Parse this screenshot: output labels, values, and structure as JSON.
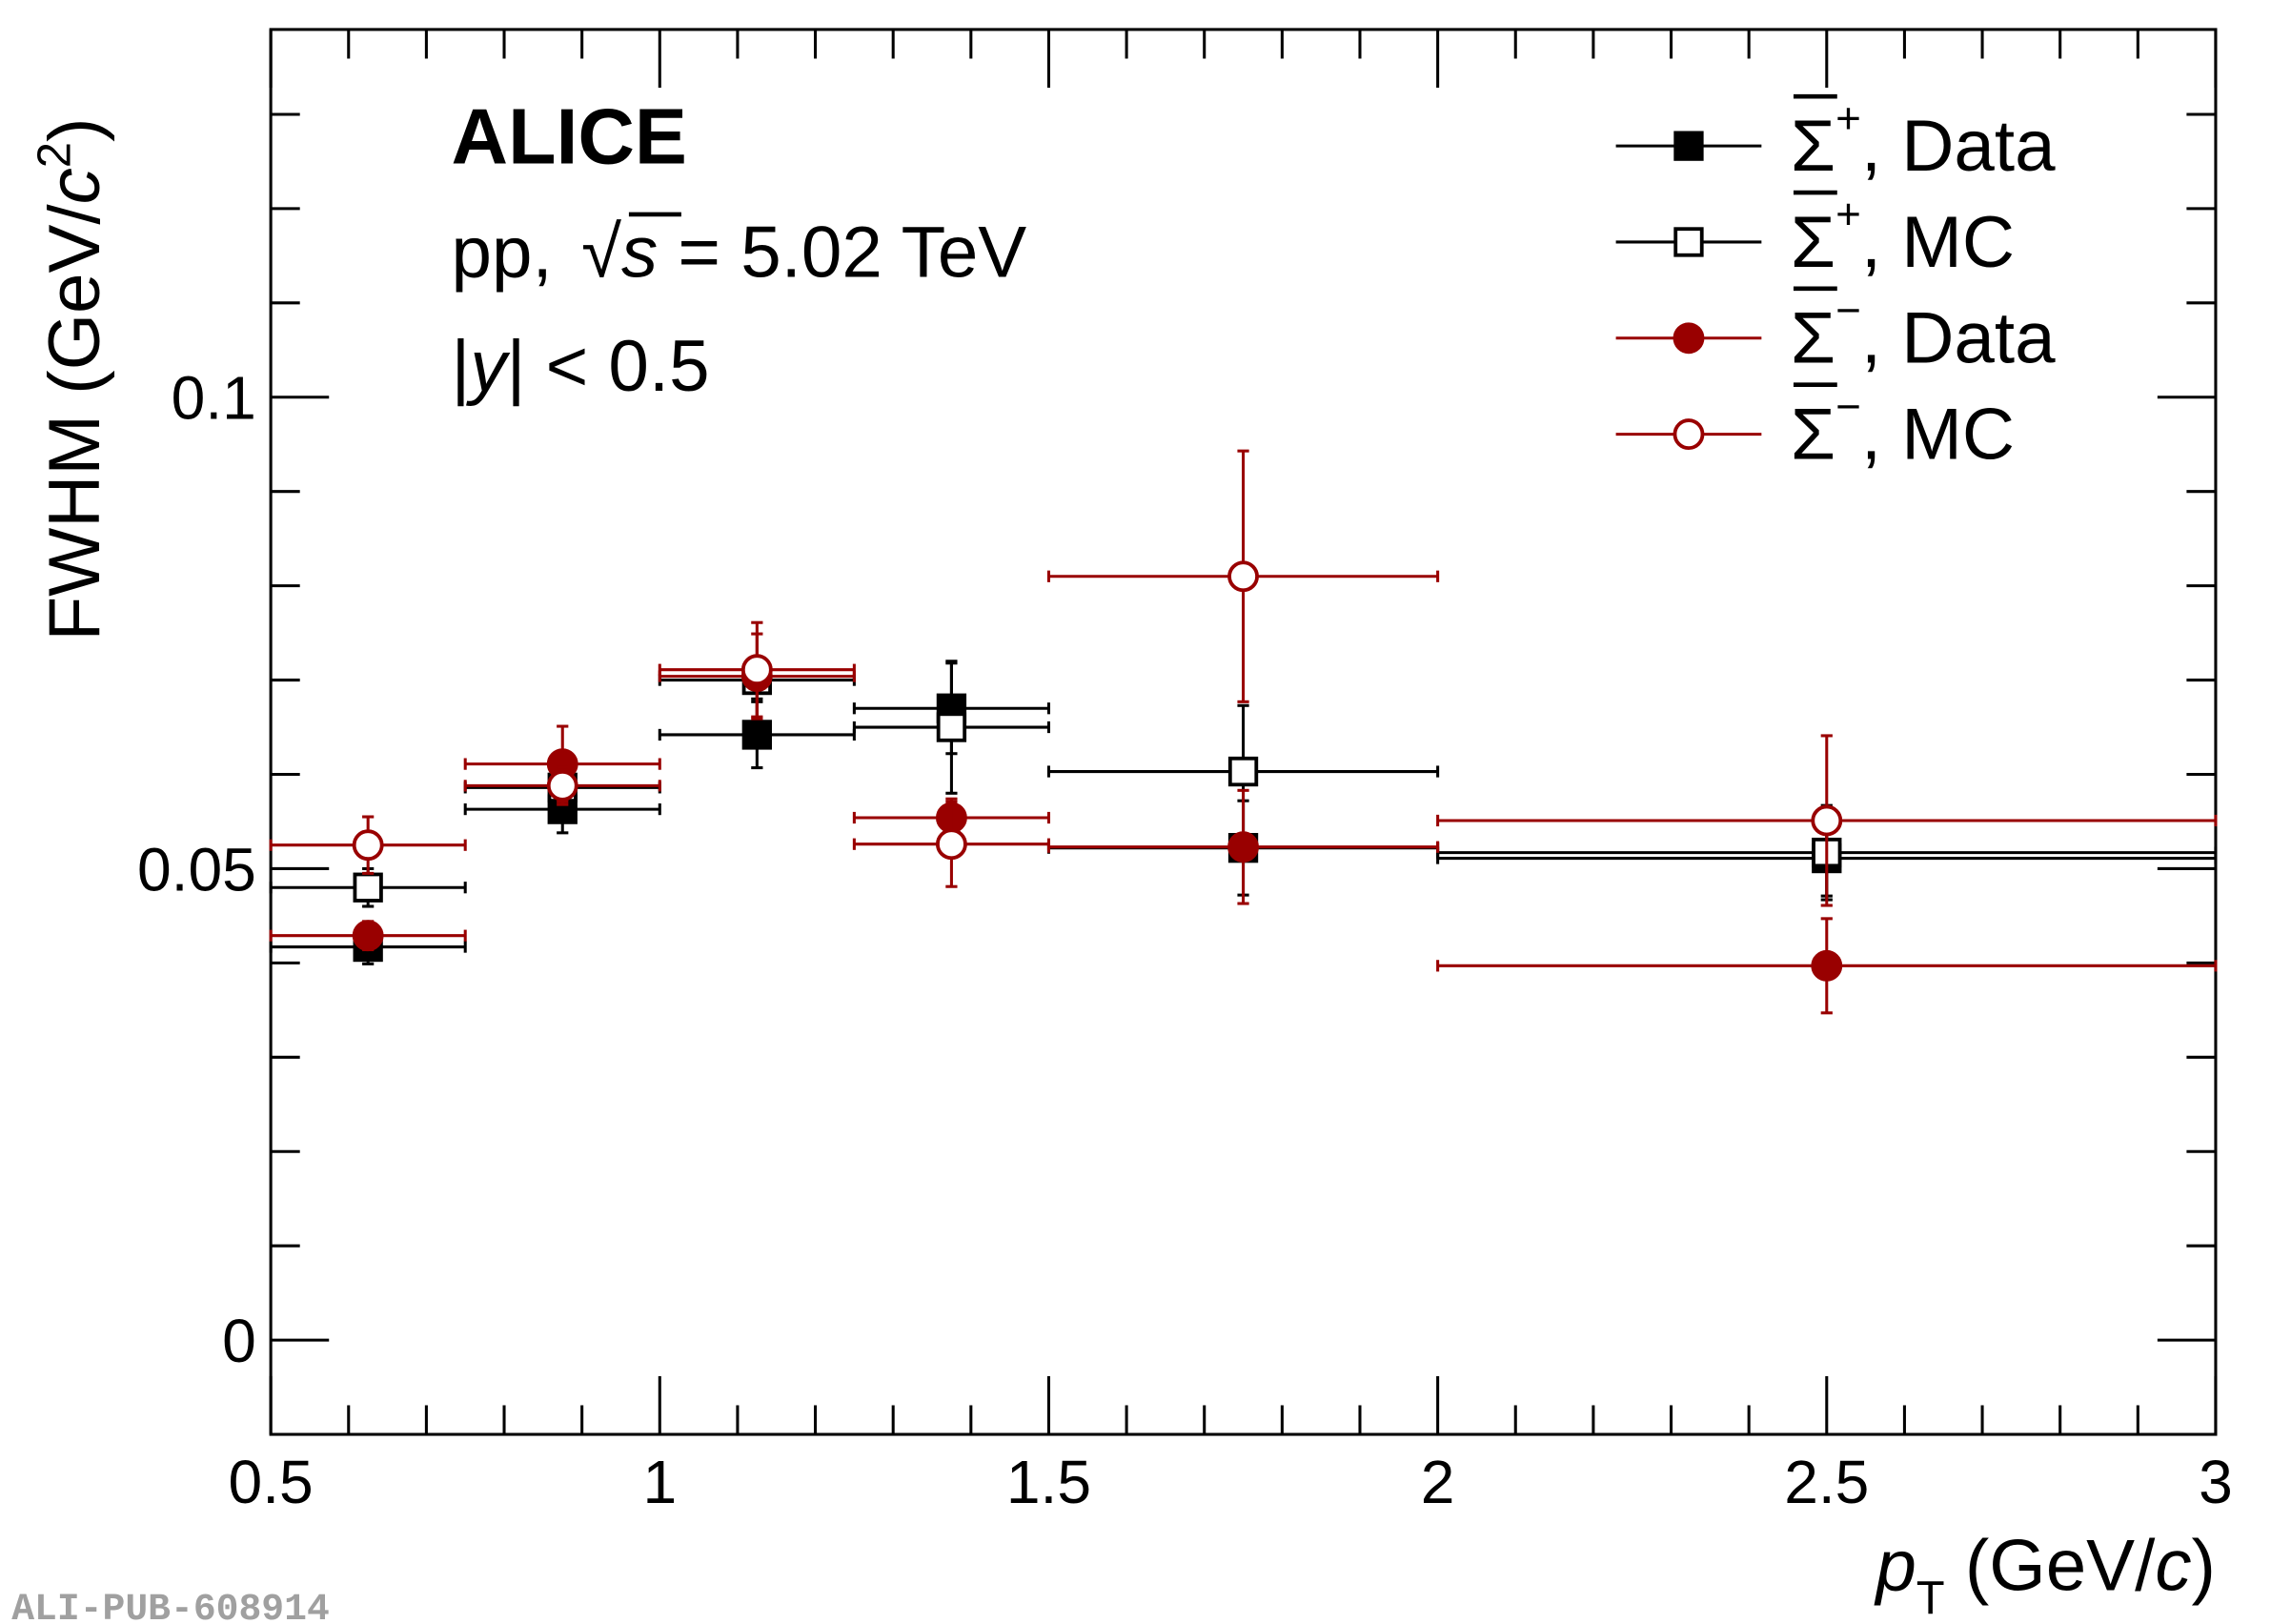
{
  "chart_data": {
    "type": "scatter",
    "xlabel": {
      "var": "p",
      "sub": "T",
      "unit": " (GeV/",
      "unit_var": "c",
      "close": ")"
    },
    "ylabel": {
      "text": "FWHM (GeV/",
      "var": "c",
      "sup": "2",
      "close": ")"
    },
    "xlim": [
      0.5,
      3
    ],
    "ylim": [
      -0.01,
      0.139
    ],
    "x_ticks": [
      "0.5",
      "1",
      "1.5",
      "2",
      "2.5",
      "3"
    ],
    "y_ticks": [
      "0",
      "0.05",
      "0.1"
    ],
    "legend_position": "top-right",
    "annotations": {
      "experiment": "ALICE",
      "system": "pp, ",
      "sqrt_s": "s",
      "energy": " = 5.02 TeV",
      "rapidity_var": "y",
      "rapidity_cut": "| < 0.5"
    },
    "watermark": "ALI-PUB-608914",
    "bins": [
      [
        0.5,
        0.75
      ],
      [
        0.75,
        1.0
      ],
      [
        1.0,
        1.25
      ],
      [
        1.25,
        1.5
      ],
      [
        1.5,
        2.0
      ],
      [
        2.0,
        3.0
      ]
    ],
    "x": [
      0.625,
      0.875,
      1.125,
      1.375,
      1.75,
      2.5
    ],
    "series": [
      {
        "name": "Σ̄+, Data",
        "particle_sup": "+",
        "label": ", Data",
        "color": "#000000",
        "marker": "square",
        "filled": true,
        "values": [
          0.0417,
          0.0563,
          0.0642,
          0.067,
          0.0522,
          0.0511
        ],
        "errors": [
          0.0018,
          0.0025,
          0.0035,
          0.0048,
          0.005,
          0.004
        ]
      },
      {
        "name": "Σ̄+, MC",
        "particle_sup": "+",
        "label": ", MC",
        "color": "#000000",
        "marker": "square",
        "filled": false,
        "values": [
          0.048,
          0.0586,
          0.07,
          0.065,
          0.0603,
          0.0517
        ],
        "errors": [
          0.002,
          0.0015,
          0.002,
          0.007,
          0.007,
          0.005
        ]
      },
      {
        "name": "Σ̄−, Data",
        "particle_sup": "−",
        "label": ", Data",
        "color": "#990000",
        "marker": "circle",
        "filled": true,
        "values": [
          0.0429,
          0.0611,
          0.0704,
          0.0554,
          0.0523,
          0.0397
        ],
        "errors": [
          0.0015,
          0.004,
          0.0045,
          0.002,
          0.006,
          0.005
        ]
      },
      {
        "name": "Σ̄−, MC",
        "particle_sup": "−",
        "label": ", MC",
        "color": "#990000",
        "marker": "circle",
        "filled": false,
        "values": [
          0.0525,
          0.0588,
          0.0711,
          0.0526,
          0.081,
          0.0551
        ],
        "errors": [
          0.003,
          0.002,
          0.005,
          0.0045,
          0.0133,
          0.009
        ]
      }
    ]
  }
}
